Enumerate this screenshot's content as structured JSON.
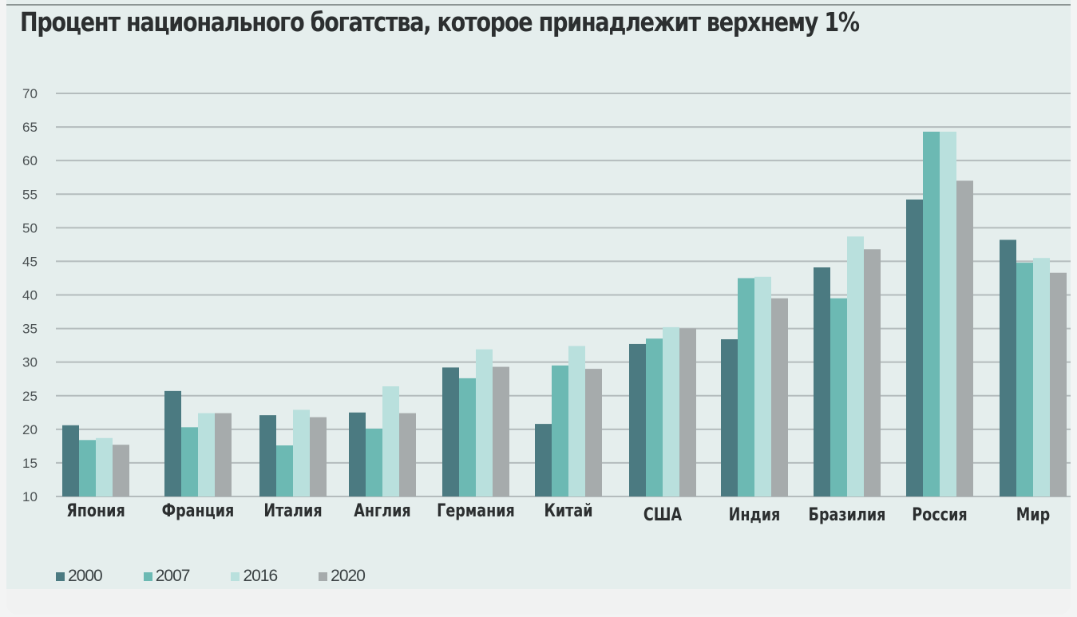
{
  "chart_data": {
    "type": "bar",
    "title": "Процент национального богатства, которое принадлежит верхнему 1%",
    "categories": [
      "Япония",
      "Франция",
      "Италия",
      "Англия",
      "Германия",
      "Китай",
      "США",
      "Индия",
      "Бразилия",
      "Россия",
      "Мир"
    ],
    "series": [
      {
        "name": "2000",
        "color": "#4b7a81",
        "values": [
          20.6,
          25.7,
          22.1,
          22.5,
          29.2,
          20.8,
          32.7,
          33.4,
          44.1,
          54.2,
          48.2
        ]
      },
      {
        "name": "2007",
        "color": "#6cb9b3",
        "values": [
          18.4,
          20.3,
          17.6,
          20.1,
          27.6,
          29.5,
          33.5,
          42.5,
          39.5,
          64.3,
          44.8
        ]
      },
      {
        "name": "2016",
        "color": "#b9e0dd",
        "values": [
          18.7,
          22.4,
          22.9,
          26.4,
          31.9,
          32.4,
          35.2,
          42.7,
          48.7,
          64.3,
          45.5
        ]
      },
      {
        "name": "2020",
        "color": "#a6abac",
        "values": [
          17.7,
          22.4,
          21.8,
          22.4,
          29.3,
          29.0,
          35.0,
          39.5,
          46.8,
          57.0,
          43.3
        ]
      }
    ],
    "ylim": [
      10,
      70
    ],
    "yticks": [
      "10",
      "15",
      "20",
      "25",
      "30",
      "35",
      "40",
      "45",
      "50",
      "55",
      "60",
      "65",
      "70"
    ],
    "grid": true,
    "legend_position": "bottom-left"
  }
}
